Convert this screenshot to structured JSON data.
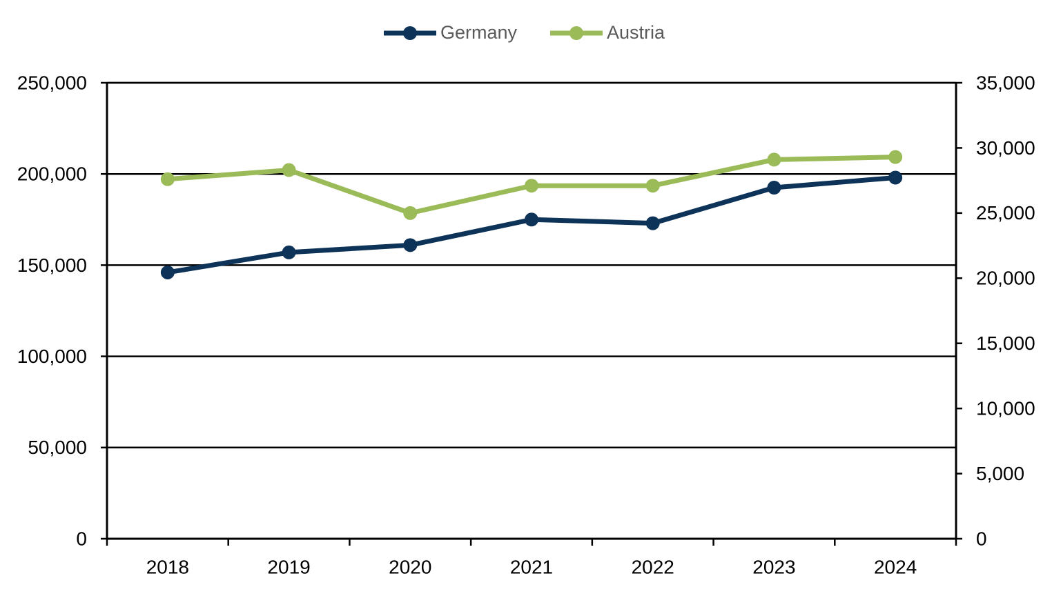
{
  "chart_data": {
    "type": "line",
    "categories": [
      "2018",
      "2019",
      "2020",
      "2021",
      "2022",
      "2023",
      "2024"
    ],
    "series": [
      {
        "name": "Germany",
        "color": "#0e3358",
        "axis": "y",
        "values": [
          146000,
          157000,
          161000,
          175000,
          173000,
          192500,
          198000
        ]
      },
      {
        "name": "Austria",
        "color": "#9bbb59",
        "axis": "y2",
        "values": [
          27600,
          28300,
          25000,
          27100,
          27100,
          29100,
          29300
        ]
      }
    ],
    "ylim": [
      0,
      250000
    ],
    "yticks": [
      0,
      {
        "value": 50000,
        "label": "50,000"
      },
      {
        "value": 100000,
        "label": "100,000"
      },
      {
        "value": 150000,
        "label": "150,000"
      },
      {
        "value": 200000,
        "label": "200,000"
      },
      {
        "value": 250000,
        "label": "250,000"
      }
    ],
    "y2lim": [
      0,
      35000
    ],
    "y2ticks": [
      0,
      {
        "value": 5000,
        "label": "5,000"
      },
      {
        "value": 10000,
        "label": "10,000"
      },
      {
        "value": 15000,
        "label": "15,000"
      },
      {
        "value": 20000,
        "label": "20,000"
      },
      {
        "value": 25000,
        "label": "25,000"
      },
      {
        "value": 30000,
        "label": "30,000"
      },
      {
        "value": 35000,
        "label": "35,000"
      }
    ],
    "grid": true,
    "legend": "top"
  }
}
